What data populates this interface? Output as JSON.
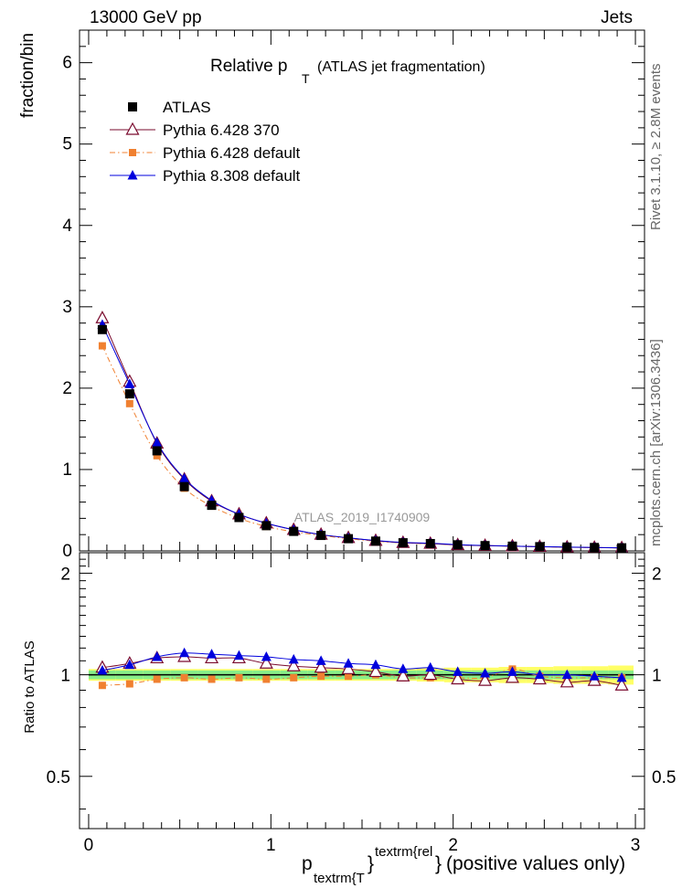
{
  "header": {
    "left": "13000 GeV pp",
    "right": "Jets"
  },
  "side": {
    "rivet": "Rivet 3.1.10, ≥ 2.8M events",
    "mcplots": "mcplots.cern.ch [arXiv:1306.3436]"
  },
  "chart_data": [
    {
      "type": "scatter",
      "title_main": "Relative p",
      "title_sub": "T",
      "title_rest": "(ATLAS jet fragmentation)",
      "ylabel": "fraction/bin",
      "watermark": "ATLAS_2019_I1740909",
      "xlim": [
        -0.05,
        3.05
      ],
      "ylim": [
        0,
        6.4
      ],
      "yticks": [
        0,
        1,
        2,
        3,
        4,
        5,
        6
      ],
      "x": [
        0.075,
        0.225,
        0.375,
        0.525,
        0.675,
        0.825,
        0.975,
        1.125,
        1.275,
        1.425,
        1.575,
        1.725,
        1.875,
        2.025,
        2.175,
        2.325,
        2.475,
        2.625,
        2.775,
        2.925
      ],
      "legend": [
        "ATLAS",
        "Pythia 6.428 370",
        "Pythia 6.428 default",
        "Pythia 8.308 default"
      ],
      "series": [
        {
          "name": "ATLAS",
          "color": "#000000",
          "marker": "square",
          "values": [
            2.72,
            1.93,
            1.23,
            0.79,
            0.56,
            0.41,
            0.31,
            0.24,
            0.19,
            0.15,
            0.12,
            0.1,
            0.09,
            0.075,
            0.065,
            0.058,
            0.052,
            0.047,
            0.042,
            0.038
          ]
        },
        {
          "name": "Pythia 6.428 370",
          "color": "#7a0a2e",
          "marker": "open-triangle",
          "values": [
            2.86,
            2.08,
            1.32,
            0.88,
            0.61,
            0.45,
            0.34,
            0.26,
            0.2,
            0.16,
            0.125,
            0.1,
            0.09,
            0.073,
            0.064,
            0.057,
            0.051,
            0.045,
            0.041,
            0.036
          ]
        },
        {
          "name": "Pythia 6.428 default",
          "color": "#f08030",
          "marker": "small-square",
          "values": [
            2.52,
            1.81,
            1.17,
            0.77,
            0.55,
            0.4,
            0.3,
            0.235,
            0.19,
            0.15,
            0.12,
            0.098,
            0.088,
            0.074,
            0.064,
            0.059,
            0.052,
            0.046,
            0.041,
            0.037
          ]
        },
        {
          "name": "Pythia 8.308 default",
          "color": "#0000dd",
          "marker": "triangle",
          "values": [
            2.78,
            2.05,
            1.33,
            0.89,
            0.62,
            0.45,
            0.34,
            0.26,
            0.2,
            0.16,
            0.128,
            0.104,
            0.094,
            0.076,
            0.066,
            0.059,
            0.052,
            0.047,
            0.042,
            0.037
          ]
        }
      ]
    },
    {
      "type": "scatter",
      "ylabel": "Ratio to ATLAS",
      "xlabel_main": "p",
      "xlabel_sub": "textrm{T",
      "xlabel_sup_open": "}",
      "xlabel_sup": "textrm{rel",
      "xlabel_close": "}",
      "xlabel_rest": "(positive values only)",
      "xlim": [
        -0.05,
        3.05
      ],
      "ylim": [
        0.35,
        2.3
      ],
      "xticks": [
        "0",
        "1",
        "2",
        "3"
      ],
      "yticks": [
        "0.5",
        "1",
        "2"
      ],
      "band_green_halfwidth": 0.03,
      "band_yellow_halfwidth": [
        0.04,
        0.04,
        0.04,
        0.04,
        0.04,
        0.04,
        0.04,
        0.04,
        0.04,
        0.04,
        0.04,
        0.04,
        0.045,
        0.05,
        0.05,
        0.055,
        0.055,
        0.06,
        0.06,
        0.065
      ],
      "series": [
        {
          "name": "Pythia 6.428 370",
          "color": "#7a0a2e",
          "marker": "open-triangle",
          "values": [
            1.05,
            1.08,
            1.12,
            1.13,
            1.12,
            1.12,
            1.08,
            1.06,
            1.05,
            1.04,
            1.02,
            0.99,
            1.0,
            0.97,
            0.96,
            0.98,
            0.97,
            0.95,
            0.96,
            0.93
          ]
        },
        {
          "name": "Pythia 6.428 default",
          "color": "#f08030",
          "marker": "small-square",
          "values": [
            0.93,
            0.94,
            0.97,
            0.98,
            0.97,
            0.98,
            0.97,
            0.98,
            0.99,
            0.99,
            1.0,
            0.98,
            0.98,
            0.98,
            0.98,
            1.04,
            0.99,
            0.98,
            0.98,
            0.98
          ]
        },
        {
          "name": "Pythia 8.308 default",
          "color": "#0000dd",
          "marker": "triangle",
          "values": [
            1.03,
            1.07,
            1.13,
            1.16,
            1.15,
            1.14,
            1.13,
            1.11,
            1.1,
            1.08,
            1.07,
            1.04,
            1.05,
            1.02,
            1.01,
            1.02,
            1.0,
            1.0,
            0.99,
            0.98
          ]
        }
      ]
    }
  ]
}
